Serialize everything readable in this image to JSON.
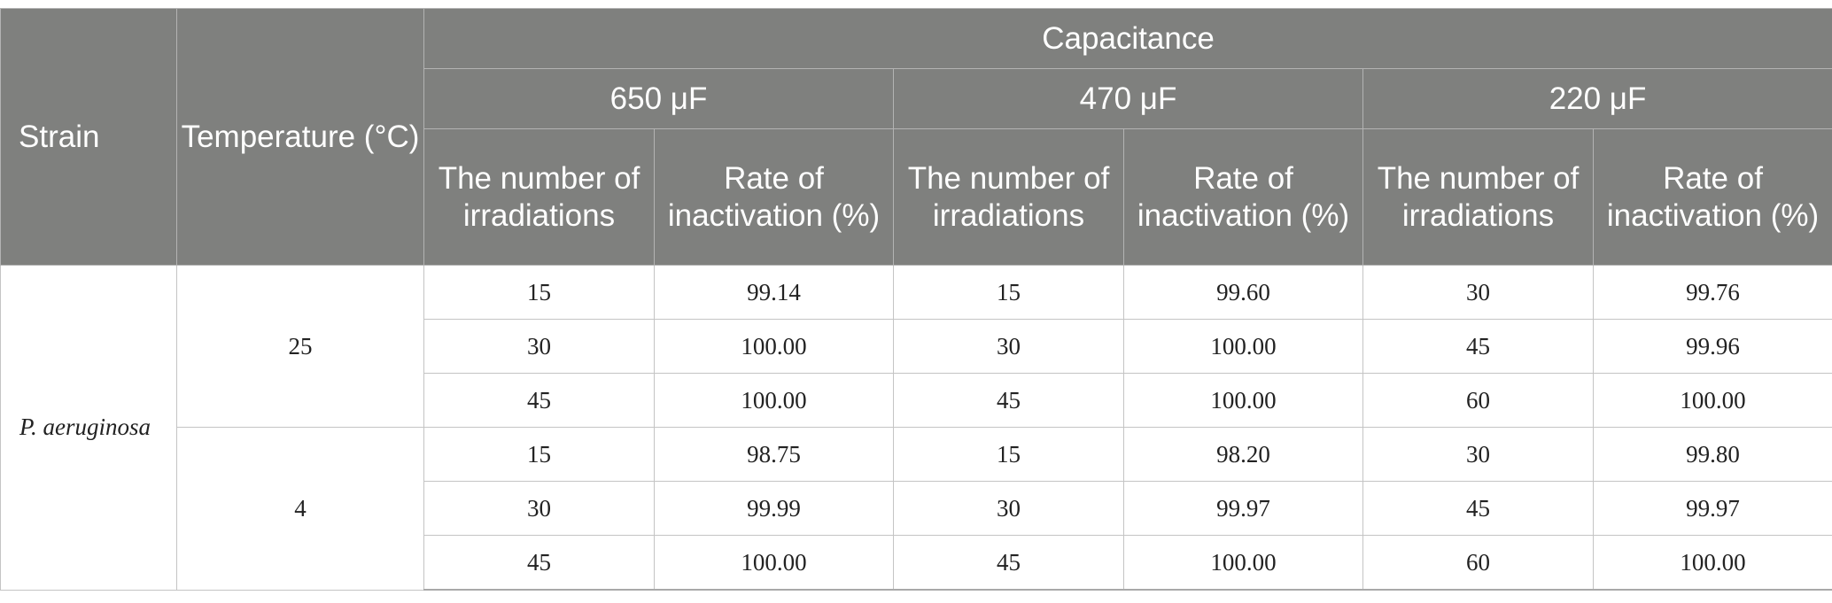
{
  "table": {
    "headers": {
      "strain": "Strain",
      "temperature": "Temperature (°C)",
      "capacitance": "Capacitance",
      "capacitance_levels": [
        "650 μF",
        "470 μF",
        "220 μF"
      ],
      "irradiations": "The number of irradiations",
      "inactivation": "Rate of inactivation (%)"
    },
    "strain": "P. aeruginosa",
    "groups": [
      {
        "temperature": "25",
        "rows": [
          [
            "15",
            "99.14",
            "15",
            "99.60",
            "30",
            "99.76"
          ],
          [
            "30",
            "100.00",
            "30",
            "100.00",
            "45",
            "99.96"
          ],
          [
            "45",
            "100.00",
            "45",
            "100.00",
            "60",
            "100.00"
          ]
        ]
      },
      {
        "temperature": "4",
        "rows": [
          [
            "15",
            "98.75",
            "15",
            "98.20",
            "30",
            "99.80"
          ],
          [
            "30",
            "99.99",
            "30",
            "99.97",
            "45",
            "99.97"
          ],
          [
            "45",
            "100.00",
            "45",
            "100.00",
            "60",
            "100.00"
          ]
        ]
      }
    ]
  }
}
